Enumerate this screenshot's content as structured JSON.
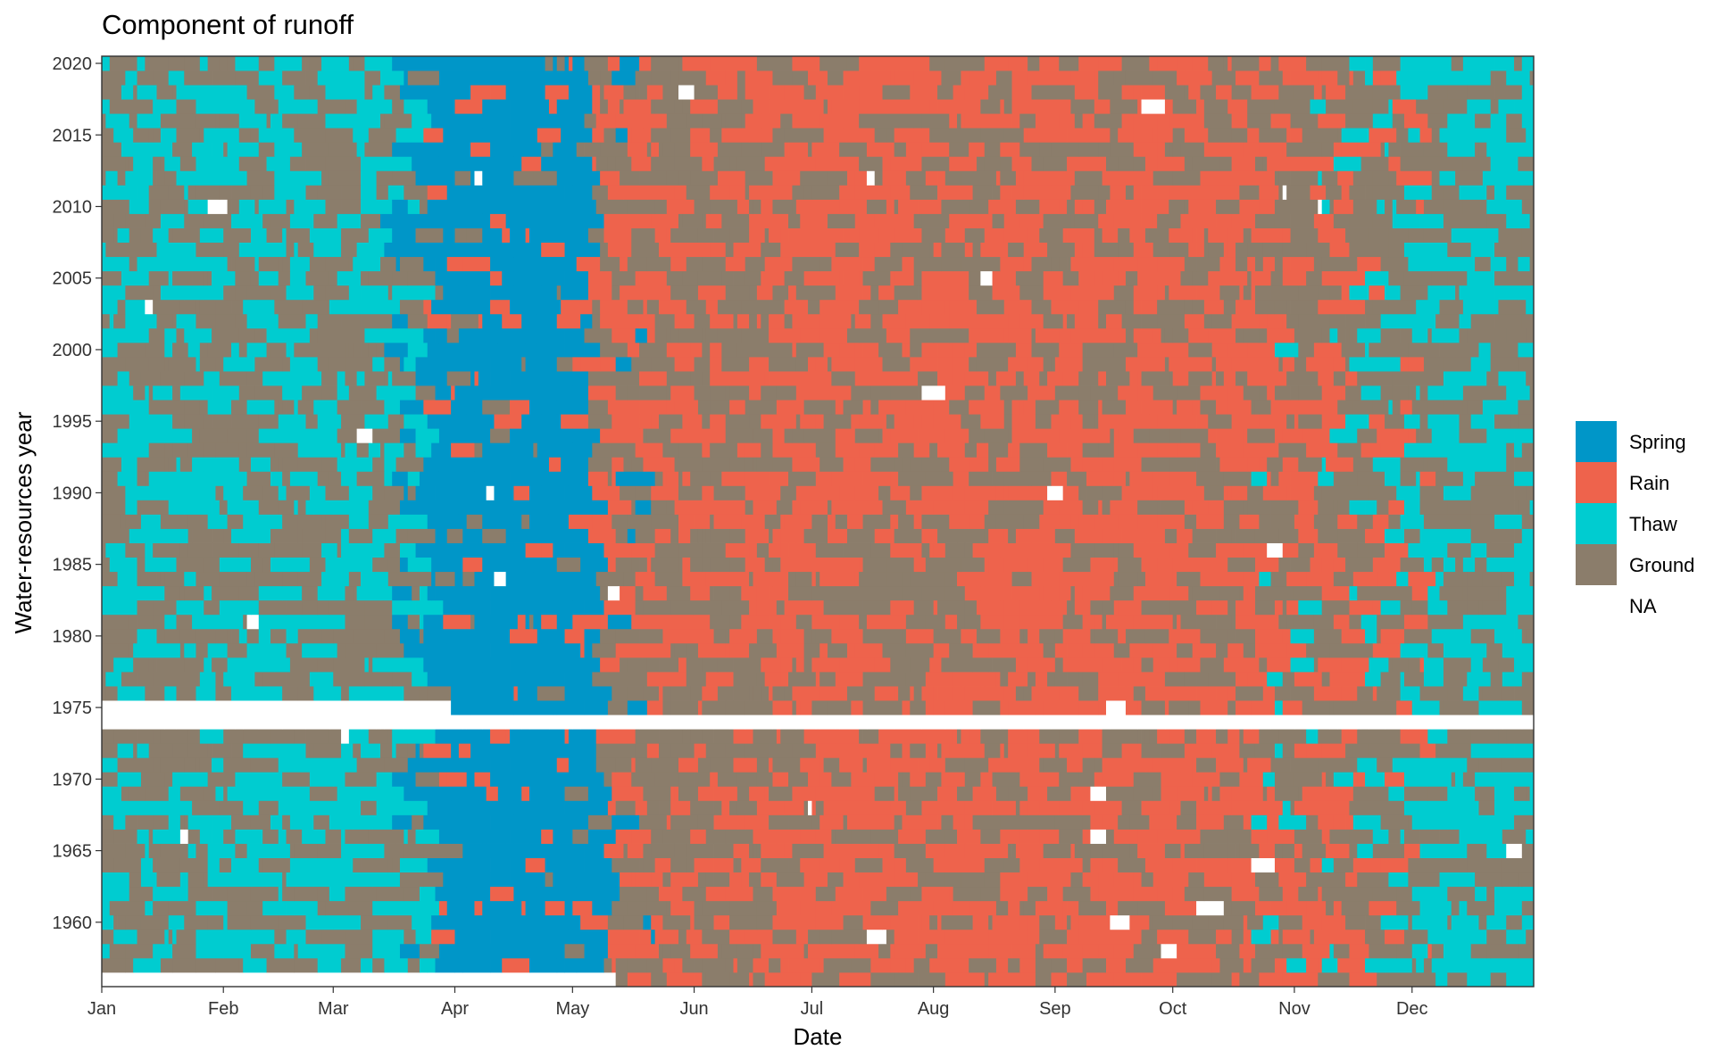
{
  "chart_data": {
    "type": "heatmap",
    "title": "Component of runoff",
    "xlabel": "Date",
    "ylabel": "Water-resources year",
    "x_ticks": [
      "Jan",
      "Feb",
      "Mar",
      "Apr",
      "May",
      "Jun",
      "Jul",
      "Aug",
      "Sep",
      "Oct",
      "Nov",
      "Dec"
    ],
    "x_tick_days": [
      1,
      32,
      60,
      91,
      121,
      152,
      182,
      213,
      244,
      274,
      305,
      335
    ],
    "y_ticks": [
      1960,
      1965,
      1970,
      1975,
      1980,
      1985,
      1990,
      1995,
      2000,
      2005,
      2010,
      2015,
      2020
    ],
    "year_range": [
      1956,
      2020
    ],
    "day_range": [
      1,
      365
    ],
    "legend": {
      "position": "right",
      "entries": [
        {
          "label": "Spring",
          "color": "#0096C8"
        },
        {
          "label": "Rain",
          "color": "#EE634C"
        },
        {
          "label": "Thaw",
          "color": "#00CCD0"
        },
        {
          "label": "Ground",
          "color": "#8B7D6B"
        },
        {
          "label": "NA",
          "color": "#FFFFFF"
        }
      ]
    },
    "seasonal_pattern": [
      {
        "component": "Thaw",
        "approx_days": [
          1,
          85
        ],
        "note": "winter mixed with Ground"
      },
      {
        "component": "Spring",
        "approx_days": [
          85,
          135
        ],
        "note": "spring freshet, earlier in recent years"
      },
      {
        "component": "Rain",
        "approx_days": [
          135,
          320
        ],
        "note": "summer-autumn mixed with Ground"
      },
      {
        "component": "Thaw",
        "approx_days": [
          320,
          365
        ],
        "note": "early winter mixed with Ground"
      }
    ],
    "missing": [
      {
        "year": 1974,
        "days": [
          1,
          365
        ]
      },
      {
        "year": 1975,
        "days": [
          1,
          88
        ]
      },
      {
        "year": 1956,
        "days": [
          1,
          130
        ]
      }
    ]
  }
}
